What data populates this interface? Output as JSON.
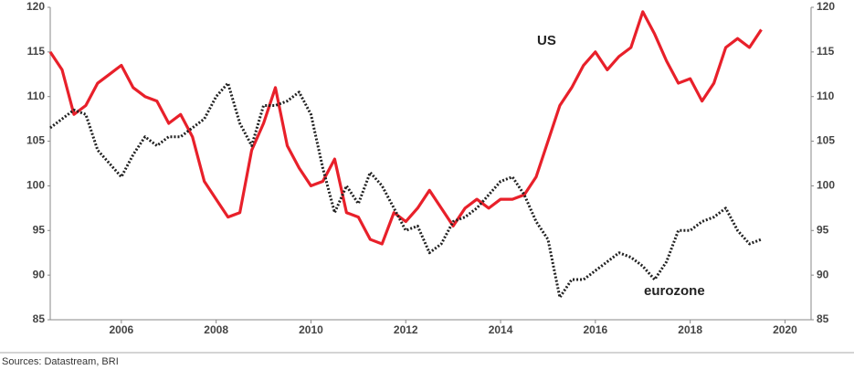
{
  "chart_data": {
    "type": "line",
    "source": "Sources: Datastream, BRI",
    "annotations": [
      "US",
      "eurozone"
    ],
    "x": [
      2004.5,
      2004.75,
      2005,
      2005.25,
      2005.5,
      2005.75,
      2006,
      2006.25,
      2006.5,
      2006.75,
      2007,
      2007.25,
      2007.5,
      2007.75,
      2008,
      2008.25,
      2008.5,
      2008.75,
      2009,
      2009.25,
      2009.5,
      2009.75,
      2010,
      2010.25,
      2010.5,
      2010.75,
      2011,
      2011.25,
      2011.5,
      2011.75,
      2012,
      2012.25,
      2012.5,
      2012.75,
      2013,
      2013.25,
      2013.5,
      2013.75,
      2014,
      2014.25,
      2014.5,
      2014.75,
      2015,
      2015.25,
      2015.5,
      2015.75,
      2016,
      2016.25,
      2016.5,
      2016.75,
      2017,
      2017.25,
      2017.5,
      2017.75,
      2018,
      2018.25,
      2018.5,
      2018.75,
      2019,
      2019.25,
      2019.5
    ],
    "series": [
      {
        "name": "US",
        "color": "#e8202a",
        "line_style": "solid",
        "values": [
          115,
          113,
          108,
          109,
          111.5,
          112.5,
          113.5,
          111,
          110,
          109.5,
          107,
          108,
          105.5,
          100.5,
          98.5,
          96.5,
          97,
          104,
          107,
          111,
          104.5,
          102,
          100,
          100.5,
          103,
          97,
          96.5,
          94,
          93.5,
          97,
          96,
          97.5,
          99.5,
          97.5,
          95.5,
          97.5,
          98.5,
          97.5,
          98.5,
          98.5,
          99,
          101,
          105,
          109,
          111,
          113.5,
          115,
          113,
          114.5,
          115.5,
          119.5,
          117,
          114,
          111.5,
          112,
          109.5,
          111.5,
          115.5,
          116.5,
          115.5,
          117.5
        ]
      },
      {
        "name": "eurozone",
        "color": "#222222",
        "line_style": "dotted",
        "values": [
          106.5,
          107.5,
          108.5,
          108,
          104,
          102.5,
          101,
          103.5,
          105.5,
          104.5,
          105.5,
          105.5,
          106.5,
          107.5,
          110,
          111.5,
          107,
          104.5,
          109,
          109,
          109.5,
          110.5,
          108,
          102,
          97,
          100,
          98,
          101.5,
          100,
          97.5,
          95,
          95.5,
          92.5,
          93.5,
          96,
          96.5,
          97.5,
          99,
          100.5,
          101,
          99,
          96,
          94,
          87.5,
          89.5,
          89.5,
          90.5,
          91.5,
          92.5,
          92,
          91,
          89.5,
          91.5,
          95,
          95,
          96,
          96.5,
          97.5,
          95,
          93.5,
          94
        ]
      }
    ],
    "xlim": [
      2004.5,
      2020.55
    ],
    "xticks": [
      2006,
      2008,
      2010,
      2012,
      2014,
      2016,
      2018,
      2020
    ],
    "ylim": [
      85,
      120
    ],
    "yticks": [
      85,
      90,
      95,
      100,
      105,
      110,
      115,
      120
    ],
    "y2lim": [
      85,
      120
    ],
    "y2ticks": [
      85,
      90,
      95,
      100,
      105,
      110,
      115,
      120
    ]
  }
}
